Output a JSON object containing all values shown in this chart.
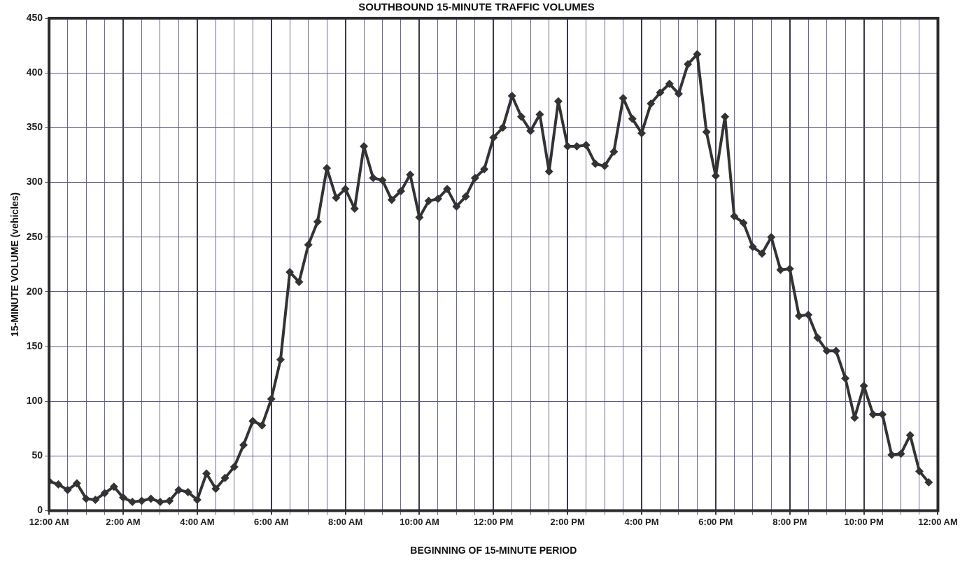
{
  "chart_data": {
    "type": "line",
    "title": "SOUTHBOUND 15-MINUTE TRAFFIC VOLUMES",
    "xlabel": "BEGINNING OF 15-MINUTE PERIOD",
    "ylabel": "15-MINUTE VOLUME (vehicles)",
    "x": [
      0,
      0.25,
      0.5,
      0.75,
      1,
      1.25,
      1.5,
      1.75,
      2,
      2.25,
      2.5,
      2.75,
      3,
      3.25,
      3.5,
      3.75,
      4,
      4.25,
      4.5,
      4.75,
      5,
      5.25,
      5.5,
      5.75,
      6,
      6.25,
      6.5,
      6.75,
      7,
      7.25,
      7.5,
      7.75,
      8,
      8.25,
      8.5,
      8.75,
      9,
      9.25,
      9.5,
      9.75,
      10,
      10.25,
      10.5,
      10.75,
      11,
      11.25,
      11.5,
      11.75,
      12,
      12.25,
      12.5,
      12.75,
      13,
      13.25,
      13.5,
      13.75,
      14,
      14.25,
      14.5,
      14.75,
      15,
      15.25,
      15.5,
      15.75,
      16,
      16.25,
      16.5,
      16.75,
      17,
      17.25,
      17.5,
      17.75,
      18,
      18.25,
      18.5,
      18.75,
      19,
      19.25,
      19.5,
      19.75,
      20,
      20.25,
      20.5,
      20.75,
      21,
      21.25,
      21.5,
      21.75,
      22,
      22.25,
      22.5,
      22.75,
      23,
      23.25,
      23.5,
      23.75
    ],
    "series": [
      {
        "color": "#333333",
        "values": [
          27,
          24,
          19,
          25,
          11,
          10,
          16,
          22,
          12,
          8,
          9,
          11,
          8,
          9,
          19,
          17,
          10,
          34,
          20,
          30,
          40,
          60,
          82,
          78,
          102,
          138,
          218,
          209,
          243,
          264,
          313,
          286,
          294,
          276,
          333,
          304,
          302,
          284,
          292,
          307,
          268,
          283,
          285,
          294,
          278,
          287,
          304,
          312,
          341,
          350,
          379,
          360,
          347,
          362,
          310,
          374,
          333,
          333,
          334,
          317,
          315,
          328,
          377,
          358,
          345,
          372,
          382,
          390,
          381,
          408,
          417,
          346,
          306,
          360,
          269,
          263,
          241,
          235,
          250,
          220,
          221,
          178,
          179,
          158,
          146,
          146,
          121,
          85,
          114,
          88,
          88,
          51,
          52,
          69,
          36,
          26
        ]
      }
    ],
    "xlim": [
      0,
      24
    ],
    "xticks": [
      {
        "value": 0,
        "label": "12:00 AM"
      },
      {
        "value": 0.5,
        "label": null
      },
      {
        "value": 1,
        "label": null
      },
      {
        "value": 1.5,
        "label": null
      },
      {
        "value": 2,
        "label": "2:00 AM"
      },
      {
        "value": 2.5,
        "label": null
      },
      {
        "value": 3,
        "label": null
      },
      {
        "value": 3.5,
        "label": null
      },
      {
        "value": 4,
        "label": "4:00 AM"
      },
      {
        "value": 4.5,
        "label": null
      },
      {
        "value": 5,
        "label": null
      },
      {
        "value": 5.5,
        "label": null
      },
      {
        "value": 6,
        "label": "6:00 AM"
      },
      {
        "value": 6.5,
        "label": null
      },
      {
        "value": 7,
        "label": null
      },
      {
        "value": 7.5,
        "label": null
      },
      {
        "value": 8,
        "label": "8:00 AM"
      },
      {
        "value": 8.5,
        "label": null
      },
      {
        "value": 9,
        "label": null
      },
      {
        "value": 9.5,
        "label": null
      },
      {
        "value": 10,
        "label": "10:00 AM"
      },
      {
        "value": 10.5,
        "label": null
      },
      {
        "value": 11,
        "label": null
      },
      {
        "value": 11.5,
        "label": null
      },
      {
        "value": 12,
        "label": "12:00 PM"
      },
      {
        "value": 12.5,
        "label": null
      },
      {
        "value": 13,
        "label": null
      },
      {
        "value": 13.5,
        "label": null
      },
      {
        "value": 14,
        "label": "2:00 PM"
      },
      {
        "value": 14.5,
        "label": null
      },
      {
        "value": 15,
        "label": null
      },
      {
        "value": 15.5,
        "label": null
      },
      {
        "value": 16,
        "label": "4:00 PM"
      },
      {
        "value": 16.5,
        "label": null
      },
      {
        "value": 17,
        "label": null
      },
      {
        "value": 17.5,
        "label": null
      },
      {
        "value": 18,
        "label": "6:00 PM"
      },
      {
        "value": 18.5,
        "label": null
      },
      {
        "value": 19,
        "label": null
      },
      {
        "value": 19.5,
        "label": null
      },
      {
        "value": 20,
        "label": "8:00 PM"
      },
      {
        "value": 20.5,
        "label": null
      },
      {
        "value": 21,
        "label": null
      },
      {
        "value": 21.5,
        "label": null
      },
      {
        "value": 22,
        "label": "10:00 PM"
      },
      {
        "value": 22.5,
        "label": null
      },
      {
        "value": 23,
        "label": null
      },
      {
        "value": 23.5,
        "label": null
      },
      {
        "value": 24,
        "label": "12:00 AM"
      }
    ],
    "ylim": [
      0,
      450
    ],
    "yticks": [
      0,
      50,
      100,
      150,
      200,
      250,
      300,
      350,
      400,
      450
    ],
    "grid": true,
    "legend": false,
    "marker": "diamond",
    "line_style": "solid"
  }
}
